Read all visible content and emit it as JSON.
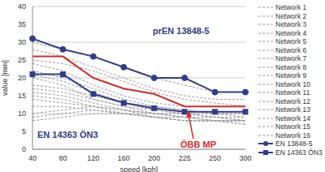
{
  "chart_data": {
    "type": "line",
    "x_label": "speed [kph]",
    "y_label": "value [mm]",
    "categories": [
      "40",
      "80",
      "120",
      "160",
      "200",
      "225",
      "250",
      "300"
    ],
    "ylim": [
      0,
      40
    ],
    "yticks": [
      0,
      5,
      10,
      15,
      20,
      25,
      30,
      35,
      40
    ],
    "grid": true,
    "legend": "right",
    "series": [
      {
        "name": "Network 1",
        "color": "#9a9a9a",
        "line_style": "dashed",
        "values": [
          30,
          28,
          26,
          23,
          20,
          18,
          16,
          16
        ]
      },
      {
        "name": "Network 2",
        "color": "#9a9a9a",
        "line_style": "dashed",
        "values": [
          28,
          26,
          23,
          20,
          17,
          15,
          14,
          14
        ]
      },
      {
        "name": "Network 3",
        "color": "#9a9a9a",
        "line_style": "dashed",
        "values": [
          25,
          24,
          22,
          19,
          16,
          14,
          13,
          12
        ]
      },
      {
        "name": "Network 4",
        "color": "#9a9a9a",
        "line_style": "dashed",
        "values": [
          24,
          22,
          18,
          15,
          13,
          12,
          12,
          12
        ]
      },
      {
        "name": "Network 5",
        "color": "#9a9a9a",
        "line_style": "dashed",
        "values": [
          22,
          20,
          17,
          14,
          12,
          11,
          10,
          10
        ]
      },
      {
        "name": "Network 6",
        "color": "#9a9a9a",
        "line_style": "dashed",
        "values": [
          21,
          19,
          16,
          13,
          11,
          10,
          9,
          8
        ]
      },
      {
        "name": "Network 7",
        "color": "#9a9a9a",
        "line_style": "dashed",
        "values": [
          20,
          18,
          14,
          12,
          10,
          10,
          10,
          10
        ]
      },
      {
        "name": "Network 8",
        "color": "#9a9a9a",
        "line_style": "dashed",
        "values": [
          18,
          17,
          15,
          13,
          12,
          11,
          10,
          9
        ]
      },
      {
        "name": "Network 9",
        "color": "#9a9a9a",
        "line_style": "dashed",
        "values": [
          17,
          16,
          14,
          12,
          11,
          10,
          9,
          8
        ]
      },
      {
        "name": "Network 10",
        "color": "#9a9a9a",
        "line_style": "dashed",
        "values": [
          16,
          15,
          13,
          11,
          10,
          9,
          9,
          9
        ]
      },
      {
        "name": "Network 11",
        "color": "#9a9a9a",
        "line_style": "dashed",
        "values": [
          15,
          14,
          12,
          11,
          9,
          9,
          8,
          8
        ]
      },
      {
        "name": "Network 12",
        "color": "#9a9a9a",
        "line_style": "dashed",
        "values": [
          14,
          13,
          12,
          10,
          9,
          8,
          8,
          8
        ]
      },
      {
        "name": "Network 13",
        "color": "#9a9a9a",
        "line_style": "dashed",
        "values": [
          12,
          12,
          11,
          10,
          9,
          8,
          8,
          7
        ]
      },
      {
        "name": "Network 14",
        "color": "#9a9a9a",
        "line_style": "dashed",
        "values": [
          10,
          11,
          12,
          11,
          10,
          9,
          8,
          8
        ]
      },
      {
        "name": "Network 15",
        "color": "#9a9a9a",
        "line_style": "dashed",
        "values": [
          9,
          10,
          11,
          10,
          9,
          8,
          8,
          8
        ]
      },
      {
        "name": "Network 16",
        "color": "#9a9a9a",
        "line_style": "dashed",
        "values": [
          8,
          9,
          10,
          10,
          9,
          8,
          8,
          7
        ]
      },
      {
        "color": "#d42b2b",
        "line_style": "solid",
        "values": [
          26,
          26,
          20,
          17,
          15.5,
          12,
          12,
          12
        ]
      },
      {
        "name": "EN 13848-5",
        "color": "#2f3d8c",
        "line_style": "solid",
        "marker": "circle",
        "values": [
          31,
          28,
          26,
          23,
          20,
          20,
          16,
          16
        ]
      },
      {
        "name": "EN 14363 ÖN3",
        "color": "#2f3d8c",
        "line_style": "solid",
        "marker": "square",
        "values": [
          21,
          21,
          15.5,
          13,
          11.5,
          10.5,
          10.5,
          10.5
        ]
      }
    ],
    "annotations": [
      "prEN 13848-5",
      "EN 14363 ÖN3",
      "ÖBB MP"
    ]
  }
}
